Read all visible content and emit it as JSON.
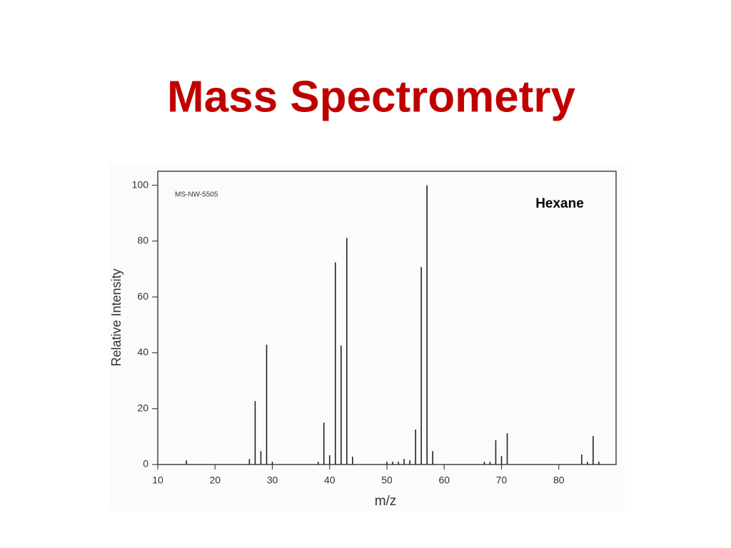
{
  "title": "Mass Spectrometry",
  "chart_data": {
    "type": "bar",
    "label": "Hexane",
    "code": "MS-NW-5505",
    "x_label": "m/z",
    "y_label": "Relative Intensity",
    "x": [
      15,
      26,
      27,
      28,
      29,
      30,
      38,
      39,
      40,
      41,
      42,
      43,
      44,
      50,
      51,
      52,
      53,
      54,
      55,
      56,
      57,
      58,
      67,
      68,
      69,
      70,
      71,
      84,
      85,
      86,
      87
    ],
    "values": [
      1.5,
      2,
      22.7,
      4.8,
      42.9,
      1,
      1,
      15,
      3.3,
      72.4,
      42.6,
      81.1,
      2.8,
      1,
      1,
      1,
      2,
      1.5,
      12.5,
      70.7,
      100,
      4.8,
      1,
      1,
      8.7,
      3,
      11.2,
      3.6,
      1,
      10.2,
      1
    ],
    "color": "#222222",
    "xlim": [
      10,
      90
    ],
    "ylim": [
      0,
      105
    ],
    "xticks": [
      10,
      20,
      30,
      40,
      50,
      60,
      70,
      80
    ],
    "yticks": [
      0,
      20,
      40,
      60,
      80,
      100
    ]
  }
}
